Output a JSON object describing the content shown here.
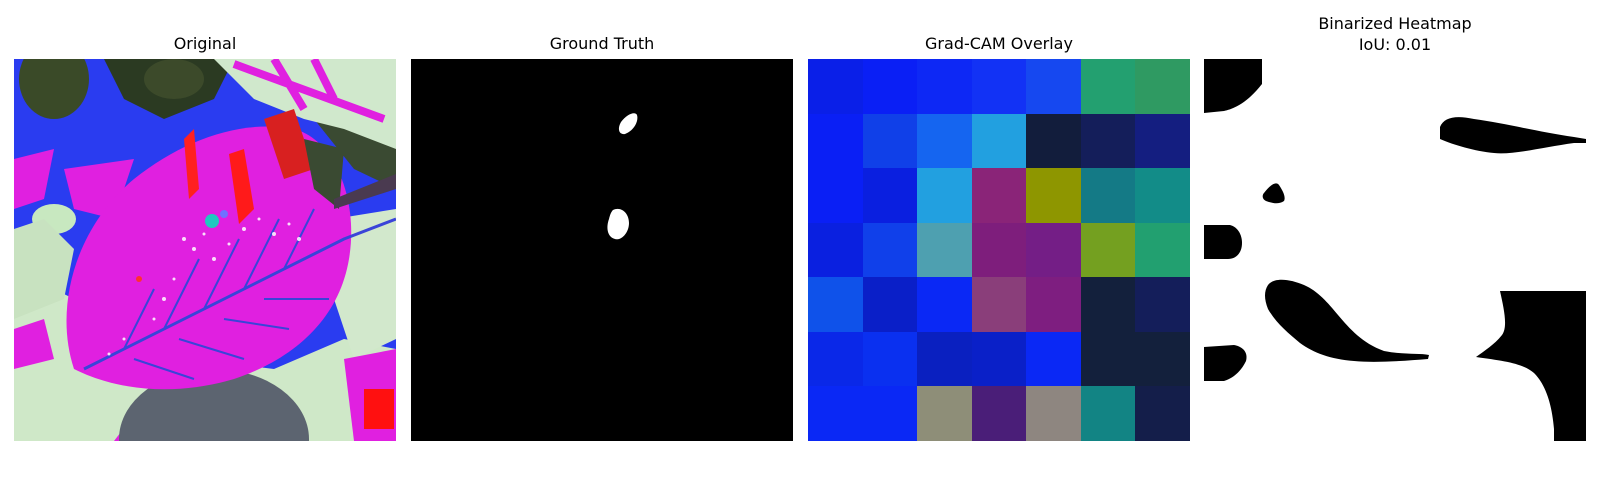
{
  "panels": [
    {
      "title": "Original"
    },
    {
      "title": "Ground Truth"
    },
    {
      "title": "Grad-CAM Overlay"
    },
    {
      "title_line1": "Binarized Heatmap",
      "title_line2": "IoU: 0.01"
    }
  ],
  "colors": {
    "mask_background": "#000000",
    "mask_foreground": "#ffffff",
    "leaf_magenta": "#e020e0",
    "leaf_pale": "#cfe8c8",
    "background_blue": "#2a3cf0",
    "background_dark": "#2b3a22"
  },
  "gradcam_grid": [
    [
      "#0a1fe8",
      "#0a1ff5",
      "#0d28f5",
      "#1232f5",
      "#1648f0",
      "#23a070",
      "#2f9a62"
    ],
    [
      "#0a1ff5",
      "#1040e8",
      "#1565f0",
      "#22a0e0",
      "#121d3c",
      "#141e5a",
      "#141e80"
    ],
    [
      "#0a1ff5",
      "#0a1fe0",
      "#22a0e0",
      "#8a2478",
      "#8e9600",
      "#147a86",
      "#128c88"
    ],
    [
      "#0a20e0",
      "#1040ea",
      "#4ea0b0",
      "#7e1e7c",
      "#741e86",
      "#74a020",
      "#22a070"
    ],
    [
      "#0f52ea",
      "#0a1fc8",
      "#0a28f5",
      "#8a3e7a",
      "#7e1e80",
      "#13203c",
      "#141e5a"
    ],
    [
      "#0a28e8",
      "#0a30f0",
      "#0a20c0",
      "#0a20c8",
      "#0a28f5",
      "#13203c",
      "#13203c"
    ],
    [
      "#0a28f5",
      "#0a28f5",
      "#8e8e78",
      "#4a1e78",
      "#8e8680",
      "#128484",
      "#141e4a"
    ]
  ]
}
